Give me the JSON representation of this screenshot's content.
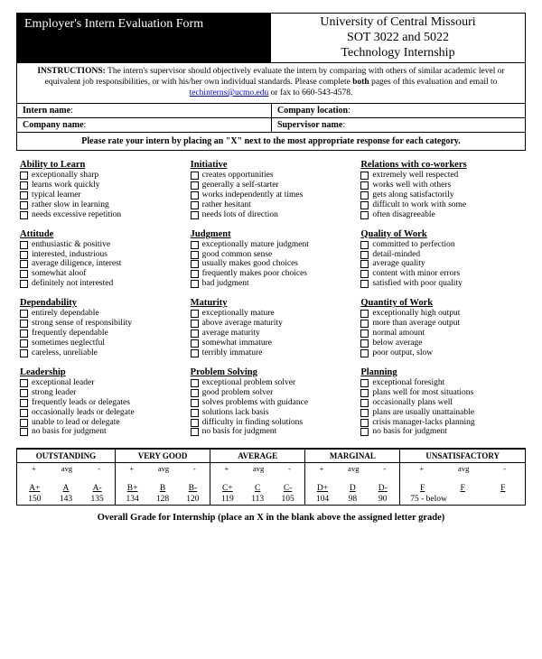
{
  "header": {
    "left_title": "Employer's Intern Evaluation Form",
    "right_line1": "University of Central Missouri",
    "right_line2": "SOT 3022 and 5022",
    "right_line3": "Technology Internship"
  },
  "instructions": {
    "label": "INSTRUCTIONS:",
    "body1": " The intern's supervisor should objectively evaluate the intern by comparing with others of similar academic level or equivalent job responsibilities, or with his/her own individual standards. Please complete ",
    "both": "both",
    "body2": " pages of this evaluation and email to ",
    "email": "techinterns@ucmo.edu",
    "body3": " or fax to 660-543-4578."
  },
  "info": {
    "intern_label": "Intern name",
    "company_label": "Company name",
    "location_label": "Company location",
    "supervisor_label": "Supervisor name",
    "intern_value": "",
    "company_value": "",
    "location_value": "",
    "supervisor_value": ""
  },
  "rate_instruction": "Please rate your intern by placing an \"X\" next to the most appropriate response for each category.",
  "columns": [
    [
      {
        "title": "Ability to Learn",
        "items": [
          "exceptionally sharp",
          "learns work quickly",
          "typical learner",
          "rather slow in learning",
          "needs excessive repetition"
        ]
      },
      {
        "title": "Attitude",
        "items": [
          "enthusiastic & positive",
          "interested, industrious",
          "average diligence, interest",
          "somewhat aloof",
          "definitely not interested"
        ]
      },
      {
        "title": "Dependability",
        "items": [
          "entirely dependable",
          "strong sense of responsibility",
          "frequently dependable",
          "sometimes neglectful",
          "careless, unreliable"
        ]
      },
      {
        "title": "Leadership",
        "items": [
          "exceptional leader",
          "strong leader",
          "frequently leads or delegates",
          "occasionally leads or delegate",
          "unable to lead or delegate",
          "no basis for judgment"
        ]
      }
    ],
    [
      {
        "title": "Initiative",
        "items": [
          "creates opportunities",
          "generally a self-starter",
          "works independently at times",
          "rather hesitant",
          "needs lots of direction"
        ]
      },
      {
        "title": "Judgment",
        "items": [
          "exceptionally mature judgment",
          "good common sense",
          "usually makes good choices",
          "frequently makes poor choices",
          "bad judgment"
        ]
      },
      {
        "title": "Maturity",
        "items": [
          "exceptionally mature",
          "above average maturity",
          "average maturity",
          "somewhat immature",
          "terribly immature"
        ]
      },
      {
        "title": "Problem Solving",
        "items": [
          "exceptional problem solver",
          "good problem solver",
          "solves problems with guidance",
          "solutions lack basis",
          "difficulty in finding solutions",
          "no basis for judgment"
        ]
      }
    ],
    [
      {
        "title": "Relations with co-workers",
        "items": [
          "extremely well respected",
          "works well with others",
          "gets along satisfactorily",
          "difficult to work with some",
          "often disagreeable"
        ]
      },
      {
        "title": "Quality of Work",
        "items": [
          "committed to perfection",
          "detail-minded",
          "average quality",
          "content with minor errors",
          "satisfied with poor quality"
        ]
      },
      {
        "title": "Quantity of Work",
        "items": [
          "exceptionally high output",
          "more than average output",
          "normal amount",
          "below average",
          "poor output, slow"
        ]
      },
      {
        "title": "Planning",
        "items": [
          "exceptional foresight",
          "plans well for most situations",
          "occasionally plans well",
          "plans are usually unattainable",
          "crisis manager-lacks planning",
          "no basis for judgment"
        ]
      }
    ]
  ],
  "grade": {
    "headers": [
      "OUTSTANDING",
      "VERY GOOD",
      "AVERAGE",
      "MARGINAL",
      "UNSATISFACTORY"
    ],
    "sub": [
      "+",
      "avg",
      "-"
    ],
    "cells": [
      {
        "letters": [
          "A+",
          "A",
          "A-"
        ],
        "nums": [
          "150",
          "143",
          "135"
        ]
      },
      {
        "letters": [
          "B+",
          "B",
          "B-"
        ],
        "nums": [
          "134",
          "128",
          "120"
        ]
      },
      {
        "letters": [
          "C+",
          "C",
          "C-"
        ],
        "nums": [
          "119",
          "113",
          "105"
        ]
      },
      {
        "letters": [
          "D+",
          "D",
          "D-"
        ],
        "nums": [
          "104",
          "98",
          "90"
        ]
      },
      {
        "letters": [
          "F",
          "F",
          "F"
        ],
        "nums": [
          "75 - below",
          "",
          ""
        ]
      }
    ]
  },
  "overall": "Overall Grade for Internship (place an X in the blank above the assigned letter grade)"
}
